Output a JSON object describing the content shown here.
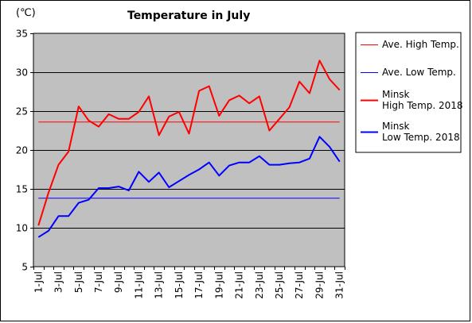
{
  "chart_data": {
    "type": "line",
    "title": "Temperature in July",
    "unit_label": "(℃)",
    "ylim": [
      5,
      35
    ],
    "y_ticks": [
      5,
      10,
      15,
      20,
      25,
      30,
      35
    ],
    "grid": true,
    "legend_position": "right",
    "x": [
      "1-Jul",
      "2-Jul",
      "3-Jul",
      "4-Jul",
      "5-Jul",
      "6-Jul",
      "7-Jul",
      "8-Jul",
      "9-Jul",
      "10-Jul",
      "11-Jul",
      "12-Jul",
      "13-Jul",
      "14-Jul",
      "15-Jul",
      "16-Jul",
      "17-Jul",
      "18-Jul",
      "19-Jul",
      "20-Jul",
      "21-Jul",
      "22-Jul",
      "23-Jul",
      "24-Jul",
      "25-Jul",
      "26-Jul",
      "27-Jul",
      "28-Jul",
      "29-Jul",
      "30-Jul",
      "31-Jul"
    ],
    "x_tick_labels": [
      "1-Jul",
      "3-Jul",
      "5-Jul",
      "7-Jul",
      "9-Jul",
      "11-Jul",
      "13-Jul",
      "15-Jul",
      "17-Jul",
      "19-Jul",
      "21-Jul",
      "23-Jul",
      "25-Jul",
      "27-Jul",
      "29-Jul",
      "31-Jul"
    ],
    "series": [
      {
        "name": "Ave. High Temp.",
        "color": "#ff0000",
        "width": 1,
        "values": [
          23.6,
          23.6,
          23.6,
          23.6,
          23.6,
          23.6,
          23.6,
          23.6,
          23.6,
          23.6,
          23.6,
          23.6,
          23.6,
          23.6,
          23.6,
          23.6,
          23.6,
          23.6,
          23.6,
          23.6,
          23.6,
          23.6,
          23.6,
          23.6,
          23.6,
          23.6,
          23.6,
          23.6,
          23.6,
          23.6,
          23.6
        ]
      },
      {
        "name": "Ave. Low Temp.",
        "color": "#0000ff",
        "width": 1,
        "values": [
          13.8,
          13.8,
          13.8,
          13.8,
          13.8,
          13.8,
          13.8,
          13.8,
          13.8,
          13.8,
          13.8,
          13.8,
          13.8,
          13.8,
          13.8,
          13.8,
          13.8,
          13.8,
          13.8,
          13.8,
          13.8,
          13.8,
          13.8,
          13.8,
          13.8,
          13.8,
          13.8,
          13.8,
          13.8,
          13.8,
          13.8
        ]
      },
      {
        "name": "Minsk\nHigh Temp. 2018",
        "color": "#ff0000",
        "width": 2,
        "values": [
          10.3,
          14.5,
          18.1,
          19.8,
          25.6,
          23.8,
          23.0,
          24.6,
          24.0,
          24.0,
          24.9,
          26.9,
          21.9,
          24.3,
          24.9,
          22.1,
          27.6,
          28.2,
          24.4,
          26.4,
          27.0,
          26.0,
          26.9,
          22.5,
          24.0,
          25.5,
          28.8,
          27.3,
          31.5,
          29.1,
          27.7
        ]
      },
      {
        "name": "Minsk\nLow Temp. 2018",
        "color": "#0000ff",
        "width": 2,
        "values": [
          8.8,
          9.6,
          11.5,
          11.5,
          13.2,
          13.6,
          15.1,
          15.1,
          15.3,
          14.8,
          17.2,
          15.9,
          17.1,
          15.2,
          16.0,
          16.8,
          17.5,
          18.4,
          16.7,
          18.0,
          18.4,
          18.4,
          19.2,
          18.1,
          18.1,
          18.3,
          18.4,
          18.9,
          21.7,
          20.4,
          18.5
        ]
      }
    ]
  }
}
